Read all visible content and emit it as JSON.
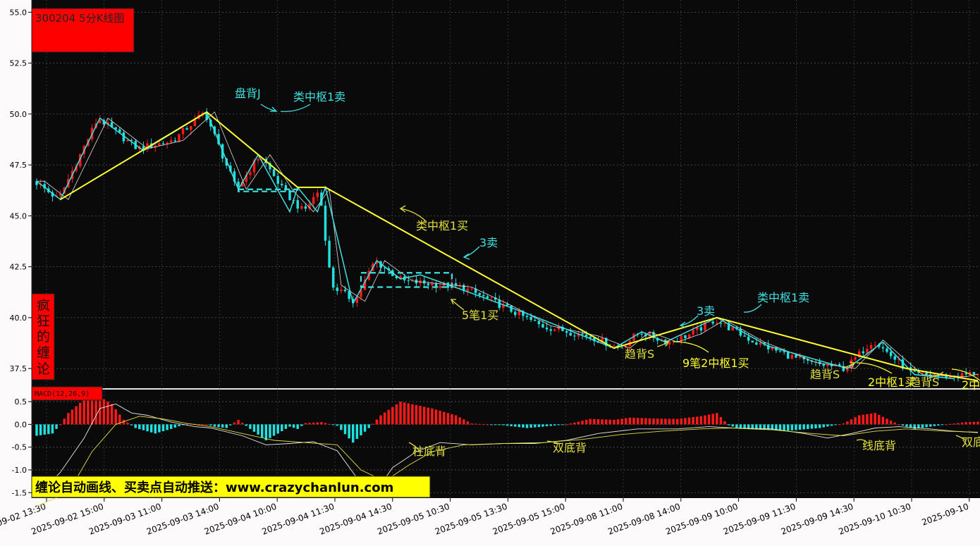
{
  "title": "300204 5分K线图",
  "side_label": [
    "疯",
    "狂",
    "的",
    "缠",
    "论"
  ],
  "macd_label": "MACD(12,26,9)",
  "banner": "缠论自动画线、买卖点自动推送：www.crazychanlun.com",
  "colors": {
    "up": "#ff1a1a",
    "down": "#20e0e0",
    "pen": "#40e0e0",
    "segment": "#ffff30",
    "dif": "#e8e8e8",
    "dea": "#e0e040",
    "bg": "#0a0a0a"
  },
  "chart_data": [
    {
      "type": "candlestick",
      "title": "300204 5分K线图",
      "ylim": [
        36.5,
        55.6
      ],
      "yticks": [
        37.5,
        40.0,
        42.5,
        45.0,
        47.5,
        50.0,
        52.5,
        55.0
      ],
      "ytick_labels": [
        "37.5",
        "40.0",
        "42.5",
        "45.0",
        "47.5",
        "50.0",
        "52.5",
        "55.0"
      ],
      "x_tick_labels": [
        "2025-09-02  13:30",
        "2025-09-02  15:00",
        "2025-09-03  11:00",
        "2025-09-03  14:00",
        "2025-09-04  10:00",
        "2025-09-04  11:30",
        "2025-09-04  14:30",
        "2025-09-05  10:30",
        "2025-09-05  13:30",
        "2025-09-05  15:00",
        "2025-09-08  11:00",
        "2025-09-08  14:00",
        "2025-09-09  10:00",
        "2025-09-09  11:30",
        "2025-09-09  14:30",
        "2025-09-10  10:30",
        "2025-09-10"
      ],
      "price_path": [
        [
          0,
          46.7
        ],
        [
          6,
          45.8
        ],
        [
          16,
          49.8
        ],
        [
          26,
          48.3
        ],
        [
          35,
          48.7
        ],
        [
          43,
          50.1
        ],
        [
          51,
          46.3
        ],
        [
          57,
          48.0
        ],
        [
          63,
          46.2
        ],
        [
          68,
          45.2
        ],
        [
          72,
          46.3
        ],
        [
          75,
          41.6
        ],
        [
          81,
          40.8
        ],
        [
          86,
          42.8
        ],
        [
          93,
          41.8
        ],
        [
          108,
          41.5
        ],
        [
          118,
          40.6
        ],
        [
          128,
          39.6
        ],
        [
          140,
          39.1
        ],
        [
          148,
          38.5
        ],
        [
          153,
          39.3
        ],
        [
          160,
          38.8
        ],
        [
          166,
          39.2
        ],
        [
          172,
          39.9
        ],
        [
          182,
          38.8
        ],
        [
          195,
          37.8
        ],
        [
          205,
          37.5
        ],
        [
          212,
          38.9
        ],
        [
          222,
          37.2
        ],
        [
          233,
          37.1
        ],
        [
          238,
          37.3
        ]
      ],
      "pens": [
        [
          0,
          46.7
        ],
        [
          6,
          45.8
        ],
        [
          16,
          49.8
        ],
        [
          27,
          48.2
        ],
        [
          43,
          50.1
        ],
        [
          51,
          46.3
        ],
        [
          56,
          48.0
        ],
        [
          64,
          45.2
        ],
        [
          66,
          46.4
        ],
        [
          71,
          45.2
        ],
        [
          73,
          46.4
        ],
        [
          80,
          40.7
        ],
        [
          86,
          42.8
        ],
        [
          92,
          41.9
        ],
        [
          97,
          42.1
        ],
        [
          110,
          41.2
        ],
        [
          124,
          40.2
        ],
        [
          146,
          38.5
        ],
        [
          153,
          39.3
        ],
        [
          159,
          38.8
        ],
        [
          172,
          40.0
        ],
        [
          185,
          38.6
        ],
        [
          205,
          37.5
        ],
        [
          214,
          38.8
        ],
        [
          222,
          37.2
        ],
        [
          232,
          37.0
        ]
      ],
      "segments": [
        [
          6,
          45.8
        ],
        [
          43,
          50.1
        ],
        [
          66,
          46.4
        ],
        [
          73,
          46.4
        ],
        [
          146,
          38.5
        ],
        [
          172,
          40.0
        ],
        [
          220,
          37.5
        ],
        [
          238,
          36.9
        ]
      ],
      "zones": [
        {
          "x0": 51,
          "x1": 66,
          "y0": 46.2,
          "y1": 46.3
        },
        {
          "x0": 82,
          "x1": 105,
          "y0": 41.5,
          "y1": 42.2
        }
      ],
      "annotations": [
        {
          "text": "盘背J",
          "color": "#40e0e0"
        },
        {
          "text": "类中枢1卖",
          "color": "#40e0e0"
        },
        {
          "text": "类中枢1买",
          "color": "#e0e040"
        },
        {
          "text": "3卖",
          "color": "#40e0e0"
        },
        {
          "text": "5笔1买",
          "color": "#e0e040"
        },
        {
          "text": "3卖",
          "color": "#40e0e0"
        },
        {
          "text": "类中枢1卖",
          "color": "#40e0e0"
        },
        {
          "text": "趋背S",
          "color": "#e0e040"
        },
        {
          "text": "9笔2中枢1买",
          "color": "#ffff30"
        },
        {
          "text": "趋背S",
          "color": "#e0e040"
        },
        {
          "text": "2中枢1买",
          "color": "#ffff30"
        },
        {
          "text": "趋背S",
          "color": "#e0e040"
        },
        {
          "text": "2中",
          "color": "#ffff30"
        }
      ]
    },
    {
      "type": "macd",
      "title": "MACD(12,26,9)",
      "ylim": [
        -1.62,
        0.78
      ],
      "yticks": [
        -1.5,
        -1.0,
        -0.5,
        0.0,
        0.5
      ],
      "ytick_labels": [
        "-1.5",
        "-1.0",
        "-0.5",
        "0.0",
        "0.5"
      ],
      "hist_path": [
        [
          0,
          -0.25
        ],
        [
          4,
          -0.2
        ],
        [
          6,
          0.0
        ],
        [
          8,
          0.25
        ],
        [
          12,
          0.55
        ],
        [
          16,
          0.6
        ],
        [
          19,
          0.45
        ],
        [
          22,
          0.1
        ],
        [
          25,
          -0.08
        ],
        [
          30,
          -0.2
        ],
        [
          34,
          -0.1
        ],
        [
          38,
          0.02
        ],
        [
          43,
          0.0
        ],
        [
          45,
          -0.05
        ],
        [
          48,
          -0.08
        ],
        [
          51,
          0.1
        ],
        [
          54,
          -0.1
        ],
        [
          58,
          -0.35
        ],
        [
          64,
          -0.05
        ],
        [
          66,
          -0.1
        ],
        [
          68,
          0.03
        ],
        [
          72,
          0.05
        ],
        [
          76,
          -0.03
        ],
        [
          80,
          -0.4
        ],
        [
          84,
          -0.08
        ],
        [
          87,
          0.2
        ],
        [
          92,
          0.5
        ],
        [
          100,
          0.35
        ],
        [
          106,
          0.2
        ],
        [
          110,
          0.02
        ],
        [
          114,
          0.0
        ],
        [
          118,
          -0.02
        ],
        [
          124,
          -0.08
        ],
        [
          128,
          -0.05
        ],
        [
          134,
          0.0
        ],
        [
          140,
          0.12
        ],
        [
          146,
          0.1
        ],
        [
          150,
          0.15
        ],
        [
          156,
          0.13
        ],
        [
          162,
          0.12
        ],
        [
          168,
          0.18
        ],
        [
          172,
          0.25
        ],
        [
          175,
          -0.02
        ],
        [
          178,
          -0.1
        ],
        [
          184,
          -0.12
        ],
        [
          190,
          -0.14
        ],
        [
          198,
          -0.08
        ],
        [
          204,
          0.02
        ],
        [
          208,
          0.2
        ],
        [
          212,
          0.25
        ],
        [
          218,
          0.0
        ],
        [
          222,
          -0.1
        ],
        [
          226,
          -0.05
        ],
        [
          230,
          0.0
        ],
        [
          235,
          0.05
        ],
        [
          238,
          0.06
        ]
      ],
      "dif_path": [
        [
          0,
          -1.6
        ],
        [
          6,
          -1.05
        ],
        [
          12,
          -0.3
        ],
        [
          16,
          0.35
        ],
        [
          20,
          0.45
        ],
        [
          24,
          0.25
        ],
        [
          28,
          0.2
        ],
        [
          34,
          0.05
        ],
        [
          40,
          -0.05
        ],
        [
          44,
          -0.08
        ],
        [
          52,
          -0.25
        ],
        [
          58,
          -0.45
        ],
        [
          64,
          -0.42
        ],
        [
          70,
          -0.38
        ],
        [
          76,
          -0.58
        ],
        [
          82,
          -1.3
        ],
        [
          86,
          -1.45
        ],
        [
          90,
          -0.95
        ],
        [
          96,
          -0.6
        ],
        [
          102,
          -0.4
        ],
        [
          110,
          -0.45
        ],
        [
          118,
          -0.42
        ],
        [
          126,
          -0.42
        ],
        [
          134,
          -0.35
        ],
        [
          142,
          -0.2
        ],
        [
          152,
          -0.1
        ],
        [
          162,
          -0.1
        ],
        [
          170,
          -0.05
        ],
        [
          176,
          -0.08
        ],
        [
          186,
          -0.1
        ],
        [
          194,
          -0.2
        ],
        [
          200,
          -0.3
        ],
        [
          206,
          -0.2
        ],
        [
          212,
          -0.08
        ],
        [
          218,
          -0.05
        ],
        [
          226,
          -0.1
        ],
        [
          232,
          -0.15
        ],
        [
          238,
          -0.18
        ]
      ],
      "dea_path": [
        [
          0,
          -1.8
        ],
        [
          8,
          -1.5
        ],
        [
          14,
          -0.6
        ],
        [
          20,
          0.0
        ],
        [
          26,
          0.18
        ],
        [
          32,
          0.12
        ],
        [
          38,
          0.02
        ],
        [
          44,
          -0.05
        ],
        [
          52,
          -0.2
        ],
        [
          60,
          -0.35
        ],
        [
          68,
          -0.4
        ],
        [
          76,
          -0.45
        ],
        [
          82,
          -1.0
        ],
        [
          88,
          -1.25
        ],
        [
          94,
          -0.9
        ],
        [
          100,
          -0.6
        ],
        [
          108,
          -0.45
        ],
        [
          118,
          -0.42
        ],
        [
          128,
          -0.4
        ],
        [
          138,
          -0.33
        ],
        [
          148,
          -0.22
        ],
        [
          158,
          -0.15
        ],
        [
          168,
          -0.1
        ],
        [
          176,
          -0.08
        ],
        [
          186,
          -0.12
        ],
        [
          196,
          -0.2
        ],
        [
          204,
          -0.25
        ],
        [
          212,
          -0.15
        ],
        [
          220,
          -0.1
        ],
        [
          230,
          -0.15
        ],
        [
          238,
          -0.17
        ]
      ],
      "annotations": [
        {
          "text": "柱底背",
          "color": "#e0e040"
        },
        {
          "text": "双底背",
          "color": "#e0e040"
        },
        {
          "text": "线底背",
          "color": "#e0e040"
        },
        {
          "text": "双底",
          "color": "#e0e040"
        }
      ]
    }
  ]
}
